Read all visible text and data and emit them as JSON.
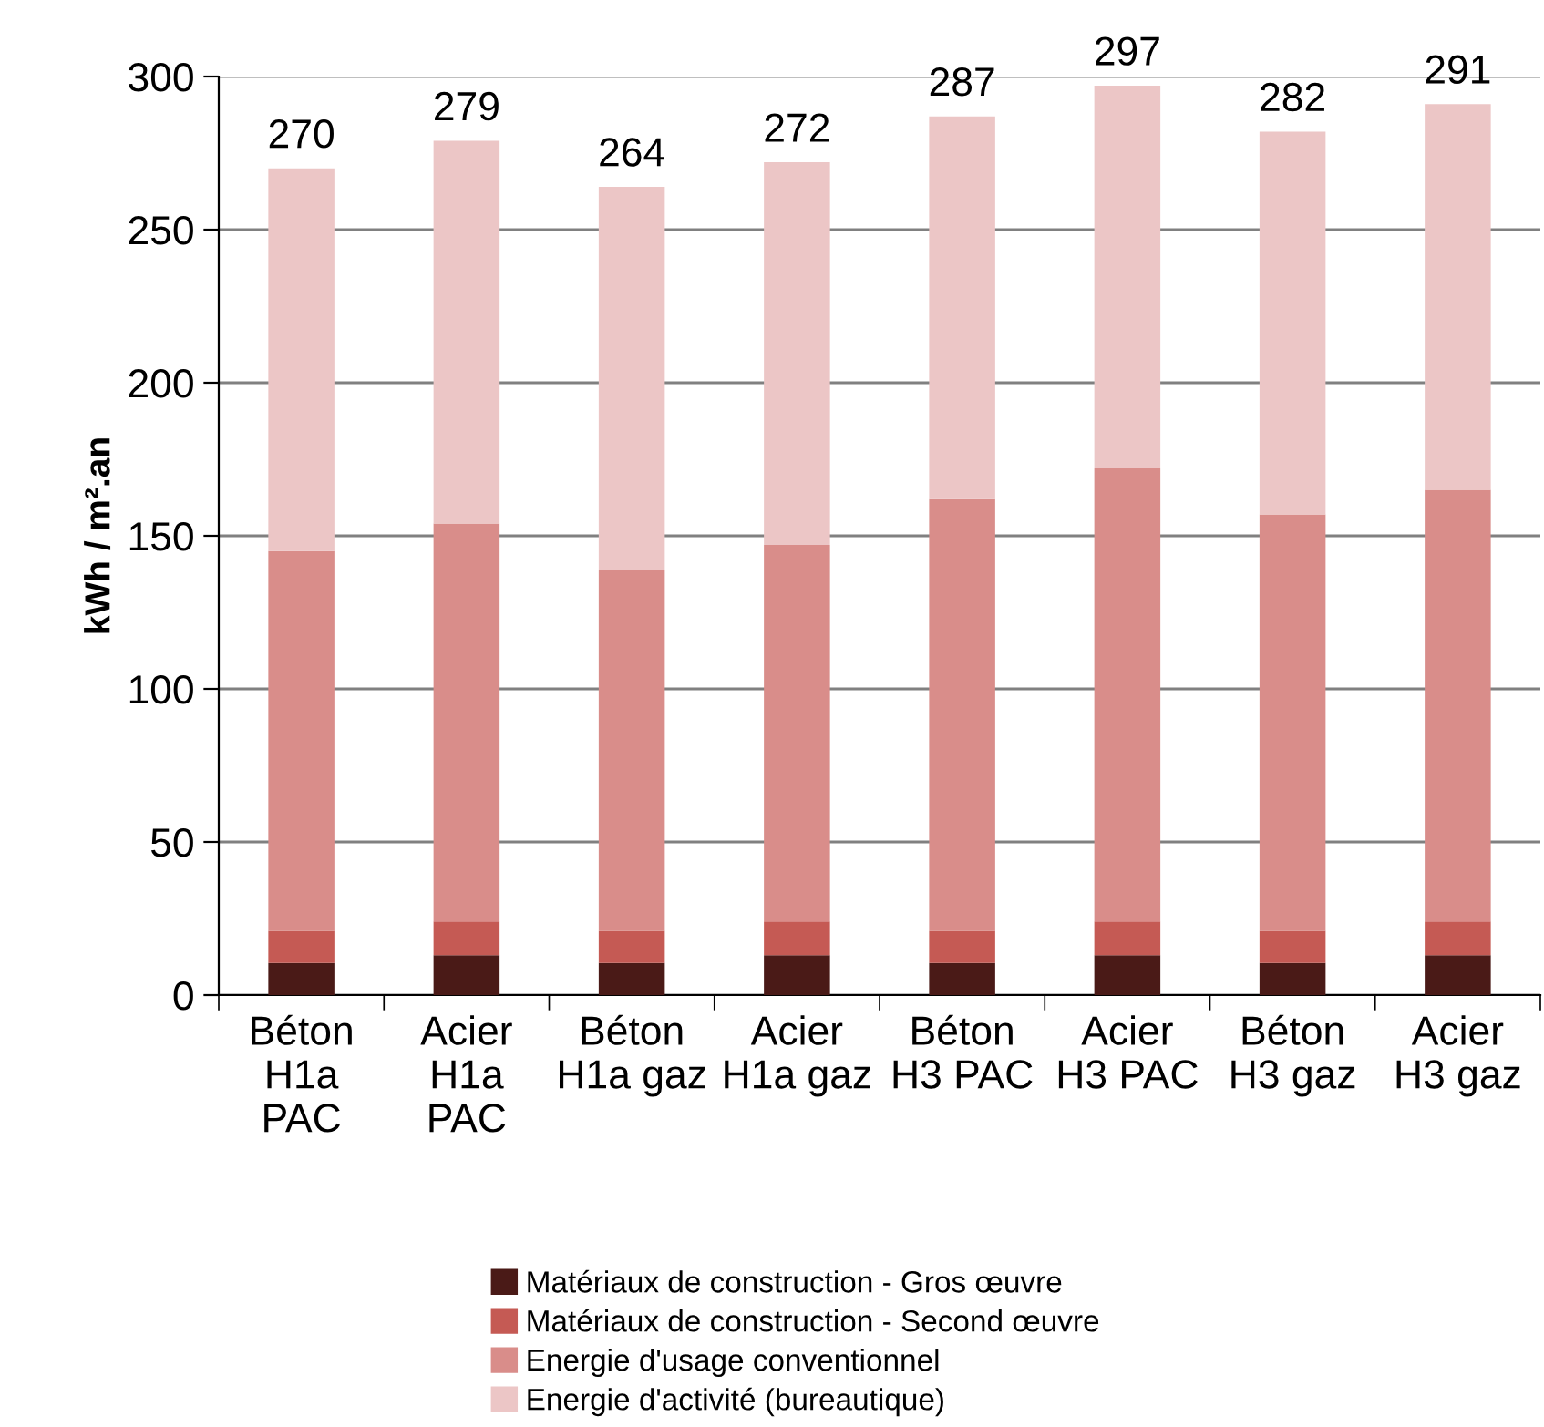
{
  "chart_data": {
    "type": "bar",
    "stacked": true,
    "ylabel": "kWh / m².an",
    "categories": [
      "Béton\nH1a\nPAC",
      "Acier\nH1a\nPAC",
      "Béton\nH1a gaz",
      "Acier\nH1a gaz",
      "Béton\nH3 PAC",
      "Acier\nH3 PAC",
      "Béton\nH3 gaz",
      "Acier\nH3 gaz"
    ],
    "series": [
      {
        "name": "Matériaux de construction - Gros œuvre",
        "color": "#4a1a17",
        "values": [
          10.5,
          13,
          10.5,
          13,
          10.5,
          13,
          10.5,
          13
        ]
      },
      {
        "name": "Matériaux de construction - Second œuvre",
        "color": "#c55a54",
        "values": [
          10.5,
          11,
          10.5,
          11,
          10.5,
          11,
          10.5,
          11
        ]
      },
      {
        "name": "Energie d'usage conventionnel",
        "color": "#d98d8a",
        "values": [
          124,
          130,
          118,
          123,
          141,
          148,
          136,
          141
        ]
      },
      {
        "name": "Energie d'activité (bureautique)",
        "color": "#ecc6c6",
        "values": [
          125,
          125,
          125,
          125,
          125,
          125,
          125,
          126
        ]
      }
    ],
    "totals": [
      "270",
      "279",
      "264",
      "272",
      "287",
      "297",
      "282",
      "291"
    ],
    "ylim": [
      0,
      300
    ],
    "yticks": [
      0,
      50,
      100,
      150,
      200,
      250,
      300
    ],
    "grid": "y",
    "legend": "bottom"
  }
}
